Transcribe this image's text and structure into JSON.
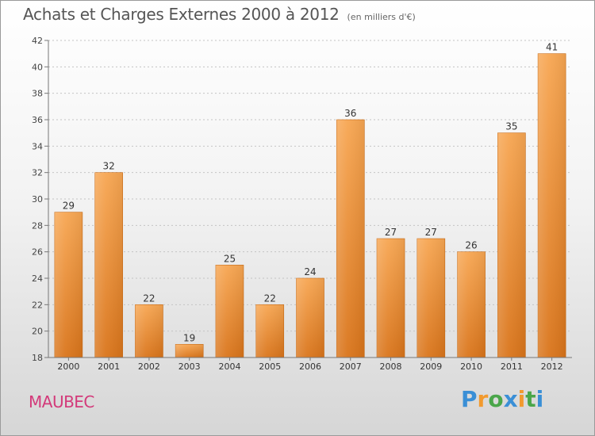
{
  "title": "Achats et Charges Externes 2000 à 2012",
  "subtitle": "(en milliers d'€)",
  "commune": "MAUBEC",
  "logo": {
    "letters": [
      "P",
      "r",
      "o",
      "x",
      "i",
      "t",
      "i"
    ],
    "colors": [
      "#3a8fd6",
      "#f29a2e",
      "#4aa64a",
      "#3a8fd6",
      "#f29a2e",
      "#4aa64a",
      "#3a8fd6"
    ]
  },
  "chart_data": {
    "type": "bar",
    "categories": [
      "2000",
      "2001",
      "2002",
      "2003",
      "2004",
      "2005",
      "2006",
      "2007",
      "2008",
      "2009",
      "2010",
      "2011",
      "2012"
    ],
    "values": [
      29,
      32,
      22,
      19,
      25,
      22,
      24,
      36,
      27,
      27,
      26,
      35,
      41
    ],
    "ylim": [
      18,
      42
    ],
    "yticks": [
      18,
      20,
      22,
      24,
      26,
      28,
      30,
      32,
      34,
      36,
      38,
      40,
      42
    ],
    "grid": "horizontal-dashed",
    "bar_color_top": "#f7a652",
    "bar_color_bottom": "#d9741a"
  }
}
